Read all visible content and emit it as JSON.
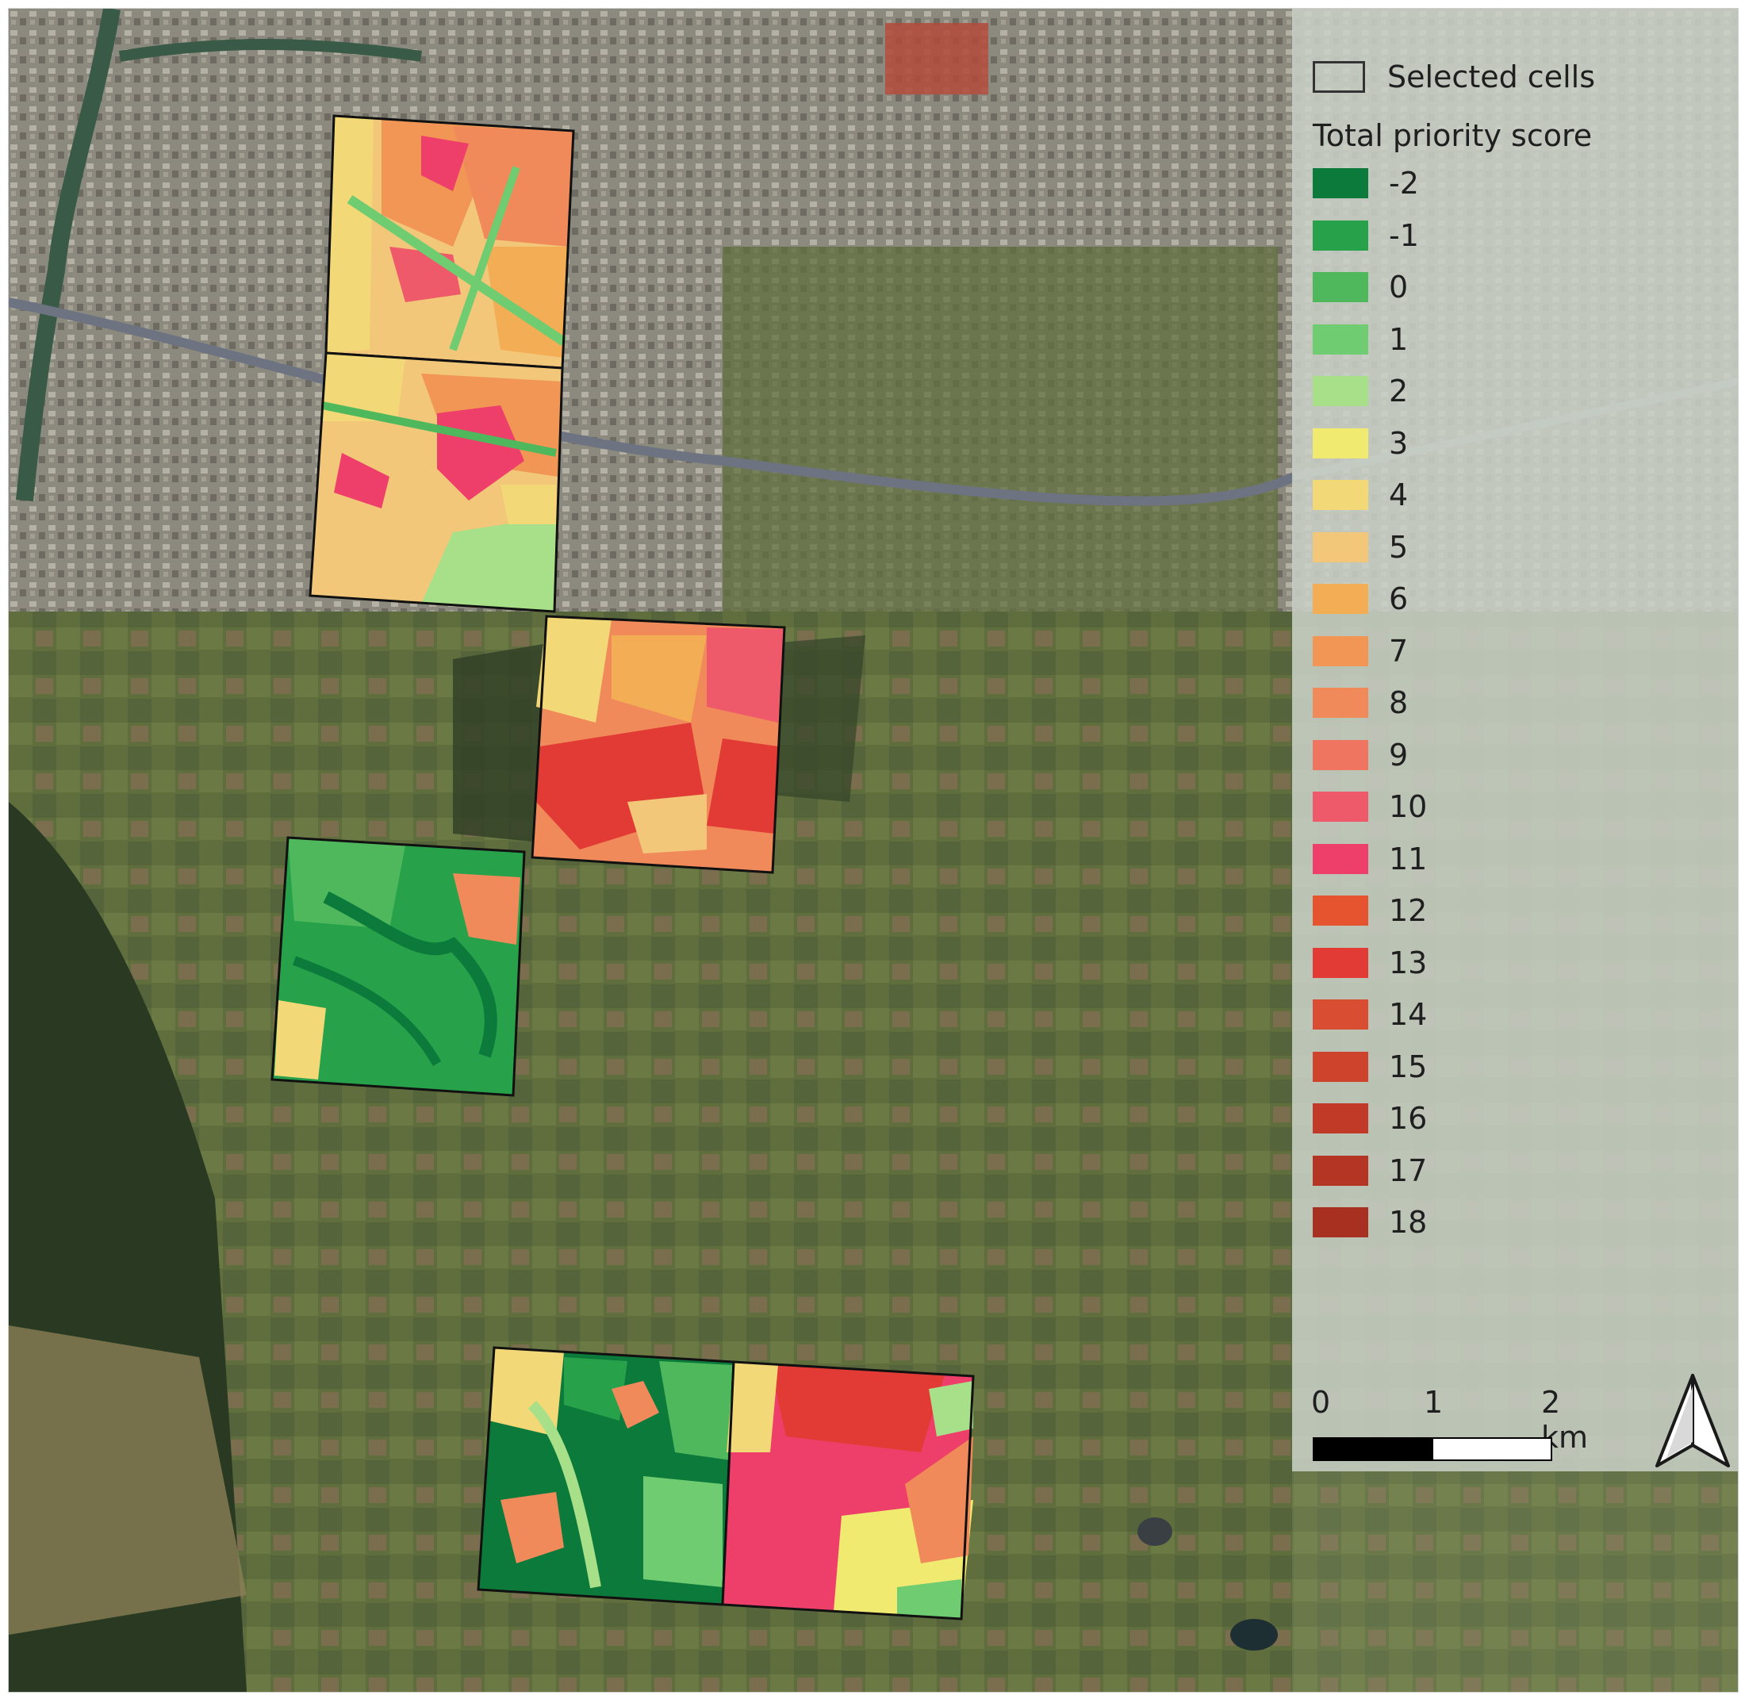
{
  "legend": {
    "selected_label": "Selected cells",
    "title": "Total priority score",
    "classes": [
      {
        "label": "-2",
        "color": "#0b7a3a"
      },
      {
        "label": "-1",
        "color": "#27a24a"
      },
      {
        "label": "0",
        "color": "#4fb85c"
      },
      {
        "label": "1",
        "color": "#6fcc70"
      },
      {
        "label": "2",
        "color": "#a8e08a"
      },
      {
        "label": "3",
        "color": "#f1ea70"
      },
      {
        "label": "4",
        "color": "#f3d877"
      },
      {
        "label": "5",
        "color": "#f3c77a"
      },
      {
        "label": "6",
        "color": "#f3ad55"
      },
      {
        "label": "7",
        "color": "#f19655"
      },
      {
        "label": "8",
        "color": "#f08a5a"
      },
      {
        "label": "9",
        "color": "#f07560"
      },
      {
        "label": "10",
        "color": "#ef5a6a"
      },
      {
        "label": "11",
        "color": "#ee3f6a"
      },
      {
        "label": "12",
        "color": "#e5542f"
      },
      {
        "label": "13",
        "color": "#e23b35"
      },
      {
        "label": "14",
        "color": "#d94e32"
      },
      {
        "label": "15",
        "color": "#cd432c"
      },
      {
        "label": "16",
        "color": "#c13a28"
      },
      {
        "label": "17",
        "color": "#b53524"
      },
      {
        "label": "18",
        "color": "#a83021"
      }
    ]
  },
  "scale_bar": {
    "ticks": [
      "0",
      "1",
      "2 km"
    ]
  },
  "north_arrow": {
    "icon": "north-arrow-icon"
  }
}
